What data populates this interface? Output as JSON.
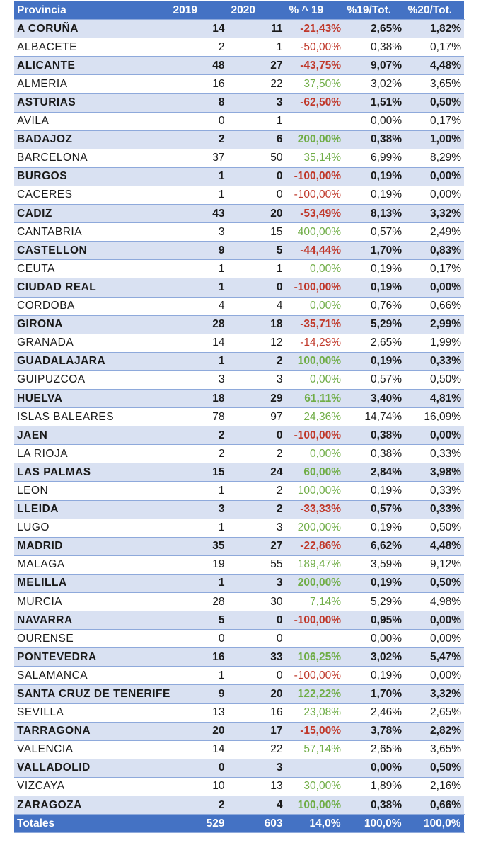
{
  "headers": [
    "Provincia",
    "2019",
    "2020",
    "% ^ 19",
    "%19/Tot.",
    "%20/Tot."
  ],
  "rows": [
    [
      "A CORUÑA",
      "14",
      "11",
      "-21,43%",
      "2,65%",
      "1,82%"
    ],
    [
      "ALBACETE",
      "2",
      "1",
      "-50,00%",
      "0,38%",
      "0,17%"
    ],
    [
      "ALICANTE",
      "48",
      "27",
      "-43,75%",
      "9,07%",
      "4,48%"
    ],
    [
      "ALMERIA",
      "16",
      "22",
      "37,50%",
      "3,02%",
      "3,65%"
    ],
    [
      "ASTURIAS",
      "8",
      "3",
      "-62,50%",
      "1,51%",
      "0,50%"
    ],
    [
      "AVILA",
      "0",
      "1",
      "",
      "0,00%",
      "0,17%"
    ],
    [
      "BADAJOZ",
      "2",
      "6",
      "200,00%",
      "0,38%",
      "1,00%"
    ],
    [
      "BARCELONA",
      "37",
      "50",
      "35,14%",
      "6,99%",
      "8,29%"
    ],
    [
      "BURGOS",
      "1",
      "0",
      "-100,00%",
      "0,19%",
      "0,00%"
    ],
    [
      "CACERES",
      "1",
      "0",
      "-100,00%",
      "0,19%",
      "0,00%"
    ],
    [
      "CADIZ",
      "43",
      "20",
      "-53,49%",
      "8,13%",
      "3,32%"
    ],
    [
      "CANTABRIA",
      "3",
      "15",
      "400,00%",
      "0,57%",
      "2,49%"
    ],
    [
      "CASTELLON",
      "9",
      "5",
      "-44,44%",
      "1,70%",
      "0,83%"
    ],
    [
      "CEUTA",
      "1",
      "1",
      "0,00%",
      "0,19%",
      "0,17%"
    ],
    [
      "CIUDAD REAL",
      "1",
      "0",
      "-100,00%",
      "0,19%",
      "0,00%"
    ],
    [
      "CORDOBA",
      "4",
      "4",
      "0,00%",
      "0,76%",
      "0,66%"
    ],
    [
      "GIRONA",
      "28",
      "18",
      "-35,71%",
      "5,29%",
      "2,99%"
    ],
    [
      "GRANADA",
      "14",
      "12",
      "-14,29%",
      "2,65%",
      "1,99%"
    ],
    [
      "GUADALAJARA",
      "1",
      "2",
      "100,00%",
      "0,19%",
      "0,33%"
    ],
    [
      "GUIPUZCOA",
      "3",
      "3",
      "0,00%",
      "0,57%",
      "0,50%"
    ],
    [
      "HUELVA",
      "18",
      "29",
      "61,11%",
      "3,40%",
      "4,81%"
    ],
    [
      "ISLAS BALEARES",
      "78",
      "97",
      "24,36%",
      "14,74%",
      "16,09%"
    ],
    [
      "JAEN",
      "2",
      "0",
      "-100,00%",
      "0,38%",
      "0,00%"
    ],
    [
      "LA RIOJA",
      "2",
      "2",
      "0,00%",
      "0,38%",
      "0,33%"
    ],
    [
      "LAS PALMAS",
      "15",
      "24",
      "60,00%",
      "2,84%",
      "3,98%"
    ],
    [
      "LEON",
      "1",
      "2",
      "100,00%",
      "0,19%",
      "0,33%"
    ],
    [
      "LLEIDA",
      "3",
      "2",
      "-33,33%",
      "0,57%",
      "0,33%"
    ],
    [
      "LUGO",
      "1",
      "3",
      "200,00%",
      "0,19%",
      "0,50%"
    ],
    [
      "MADRID",
      "35",
      "27",
      "-22,86%",
      "6,62%",
      "4,48%"
    ],
    [
      "MALAGA",
      "19",
      "55",
      "189,47%",
      "3,59%",
      "9,12%"
    ],
    [
      "MELILLA",
      "1",
      "3",
      "200,00%",
      "0,19%",
      "0,50%"
    ],
    [
      "MURCIA",
      "28",
      "30",
      "7,14%",
      "5,29%",
      "4,98%"
    ],
    [
      "NAVARRA",
      "5",
      "0",
      "-100,00%",
      "0,95%",
      "0,00%"
    ],
    [
      "OURENSE",
      "0",
      "0",
      "",
      "0,00%",
      "0,00%"
    ],
    [
      "PONTEVEDRA",
      "16",
      "33",
      "106,25%",
      "3,02%",
      "5,47%"
    ],
    [
      "SALAMANCA",
      "1",
      "0",
      "-100,00%",
      "0,19%",
      "0,00%"
    ],
    [
      "SANTA CRUZ DE TENERIFE",
      "9",
      "20",
      "122,22%",
      "1,70%",
      "3,32%"
    ],
    [
      "SEVILLA",
      "13",
      "16",
      "23,08%",
      "2,46%",
      "2,65%"
    ],
    [
      "TARRAGONA",
      "20",
      "17",
      "-15,00%",
      "3,78%",
      "2,82%"
    ],
    [
      "VALENCIA",
      "14",
      "22",
      "57,14%",
      "2,65%",
      "3,65%"
    ],
    [
      "VALLADOLID",
      "0",
      "3",
      "",
      "0,00%",
      "0,50%"
    ],
    [
      "VIZCAYA",
      "10",
      "13",
      "30,00%",
      "1,89%",
      "2,16%"
    ],
    [
      "ZARAGOZA",
      "2",
      "4",
      "100,00%",
      "0,38%",
      "0,66%"
    ]
  ],
  "totals": [
    "Totales",
    "529",
    "603",
    "14,0%",
    "100,0%",
    "100,0%"
  ],
  "colors": {
    "header_bg": "#4472c4",
    "band_bg": "#d9e1f2",
    "negative": "#c0392b",
    "positive": "#70ad47"
  }
}
